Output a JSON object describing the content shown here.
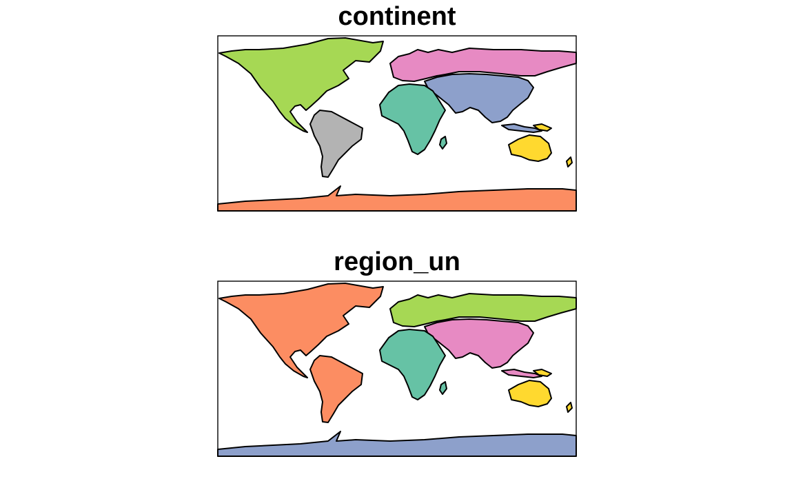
{
  "maps": [
    {
      "title": "continent",
      "colors": {
        "Africa": "#66c2a5",
        "Antarctica": "#fc8d62",
        "Asia": "#8da0cb",
        "Europe": "#e78ac3",
        "North America": "#a6d854",
        "Oceania": "#ffd92f",
        "South America": "#b3b3b3"
      }
    },
    {
      "title": "region_un",
      "colors": {
        "Africa": "#66c2a5",
        "Americas": "#fc8d62",
        "Antarctica": "#8da0cb",
        "Asia": "#e78ac3",
        "Europe": "#a6d854",
        "Oceania": "#ffd92f"
      }
    }
  ]
}
